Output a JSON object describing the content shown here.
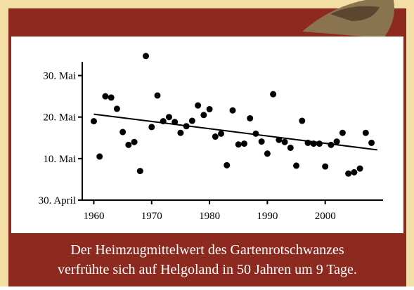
{
  "chart_data": {
    "type": "scatter",
    "caption": [
      "Der Heimzugmittelwert des Gartenrotschwanzes",
      "verfrühte sich auf Helgoland in 50 Jahren um 9 Tage."
    ],
    "x": [
      1960,
      1961,
      1962,
      1963,
      1964,
      1965,
      1966,
      1967,
      1968,
      1969,
      1970,
      1971,
      1972,
      1973,
      1974,
      1975,
      1976,
      1977,
      1978,
      1979,
      1980,
      1981,
      1982,
      1983,
      1984,
      1985,
      1986,
      1987,
      1988,
      1989,
      1990,
      1991,
      1992,
      1993,
      1994,
      1995,
      1996,
      1997,
      1998,
      1999,
      2000,
      2001,
      2002,
      2003,
      2004,
      2005,
      2006,
      2007,
      2008
    ],
    "values": [
      139,
      130.5,
      145,
      144.7,
      142,
      136.4,
      133.3,
      134,
      127,
      154.7,
      137.6,
      145.2,
      139,
      140,
      138.8,
      136.2,
      137.8,
      139.1,
      142.8,
      140.5,
      141.9,
      135.3,
      136,
      128.4,
      141.6,
      133.4,
      133.6,
      139.7,
      136,
      134.1,
      131.2,
      145.5,
      134.5,
      134,
      132.6,
      128.3,
      139.1,
      133.8,
      133.6,
      133.6,
      128.1,
      133.3,
      134.1,
      136.2,
      126.4,
      126.7,
      127.6,
      136.2,
      133.8
    ],
    "color": "#000000",
    "trend": {
      "x": [
        1960,
        2009
      ],
      "values": [
        140.7,
        132.1
      ]
    },
    "xlim": [
      1958,
      2010
    ],
    "xticks": [
      1960,
      1970,
      1980,
      1990,
      2000
    ],
    "ylim": [
      120,
      155
    ],
    "yticks": [
      {
        "value": 120,
        "label": "30. April"
      },
      {
        "value": 130,
        "label": "10. Mai"
      },
      {
        "value": 140,
        "label": "20. Mai"
      },
      {
        "value": 150,
        "label": "30. Mai"
      }
    ],
    "grid": false
  }
}
